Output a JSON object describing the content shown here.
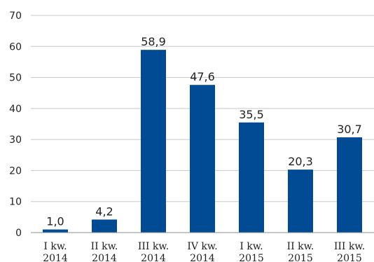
{
  "chart_data": {
    "type": "bar",
    "categories": [
      [
        "I kw.",
        "2014"
      ],
      [
        "II kw.",
        "2014"
      ],
      [
        "III kw.",
        "2014"
      ],
      [
        "IV kw.",
        "2014"
      ],
      [
        "I kw.",
        "2015"
      ],
      [
        "II kw.",
        "2015"
      ],
      [
        "III kw.",
        "2015"
      ]
    ],
    "values": [
      1.0,
      4.2,
      58.9,
      47.6,
      35.5,
      20.3,
      30.7
    ],
    "value_labels": [
      "1,0",
      "4,2",
      "58,9",
      "47,6",
      "35,5",
      "20,3",
      "30,7"
    ],
    "title": "",
    "xlabel": "",
    "ylabel": "",
    "ylim": [
      0,
      70
    ],
    "yticks": [
      0,
      10,
      20,
      30,
      40,
      50,
      60,
      70
    ],
    "grid": true,
    "legend": "none",
    "colors": {
      "bar": "#004b93",
      "grid": "#c8c8c8",
      "axis": "#8c8c8c"
    }
  }
}
